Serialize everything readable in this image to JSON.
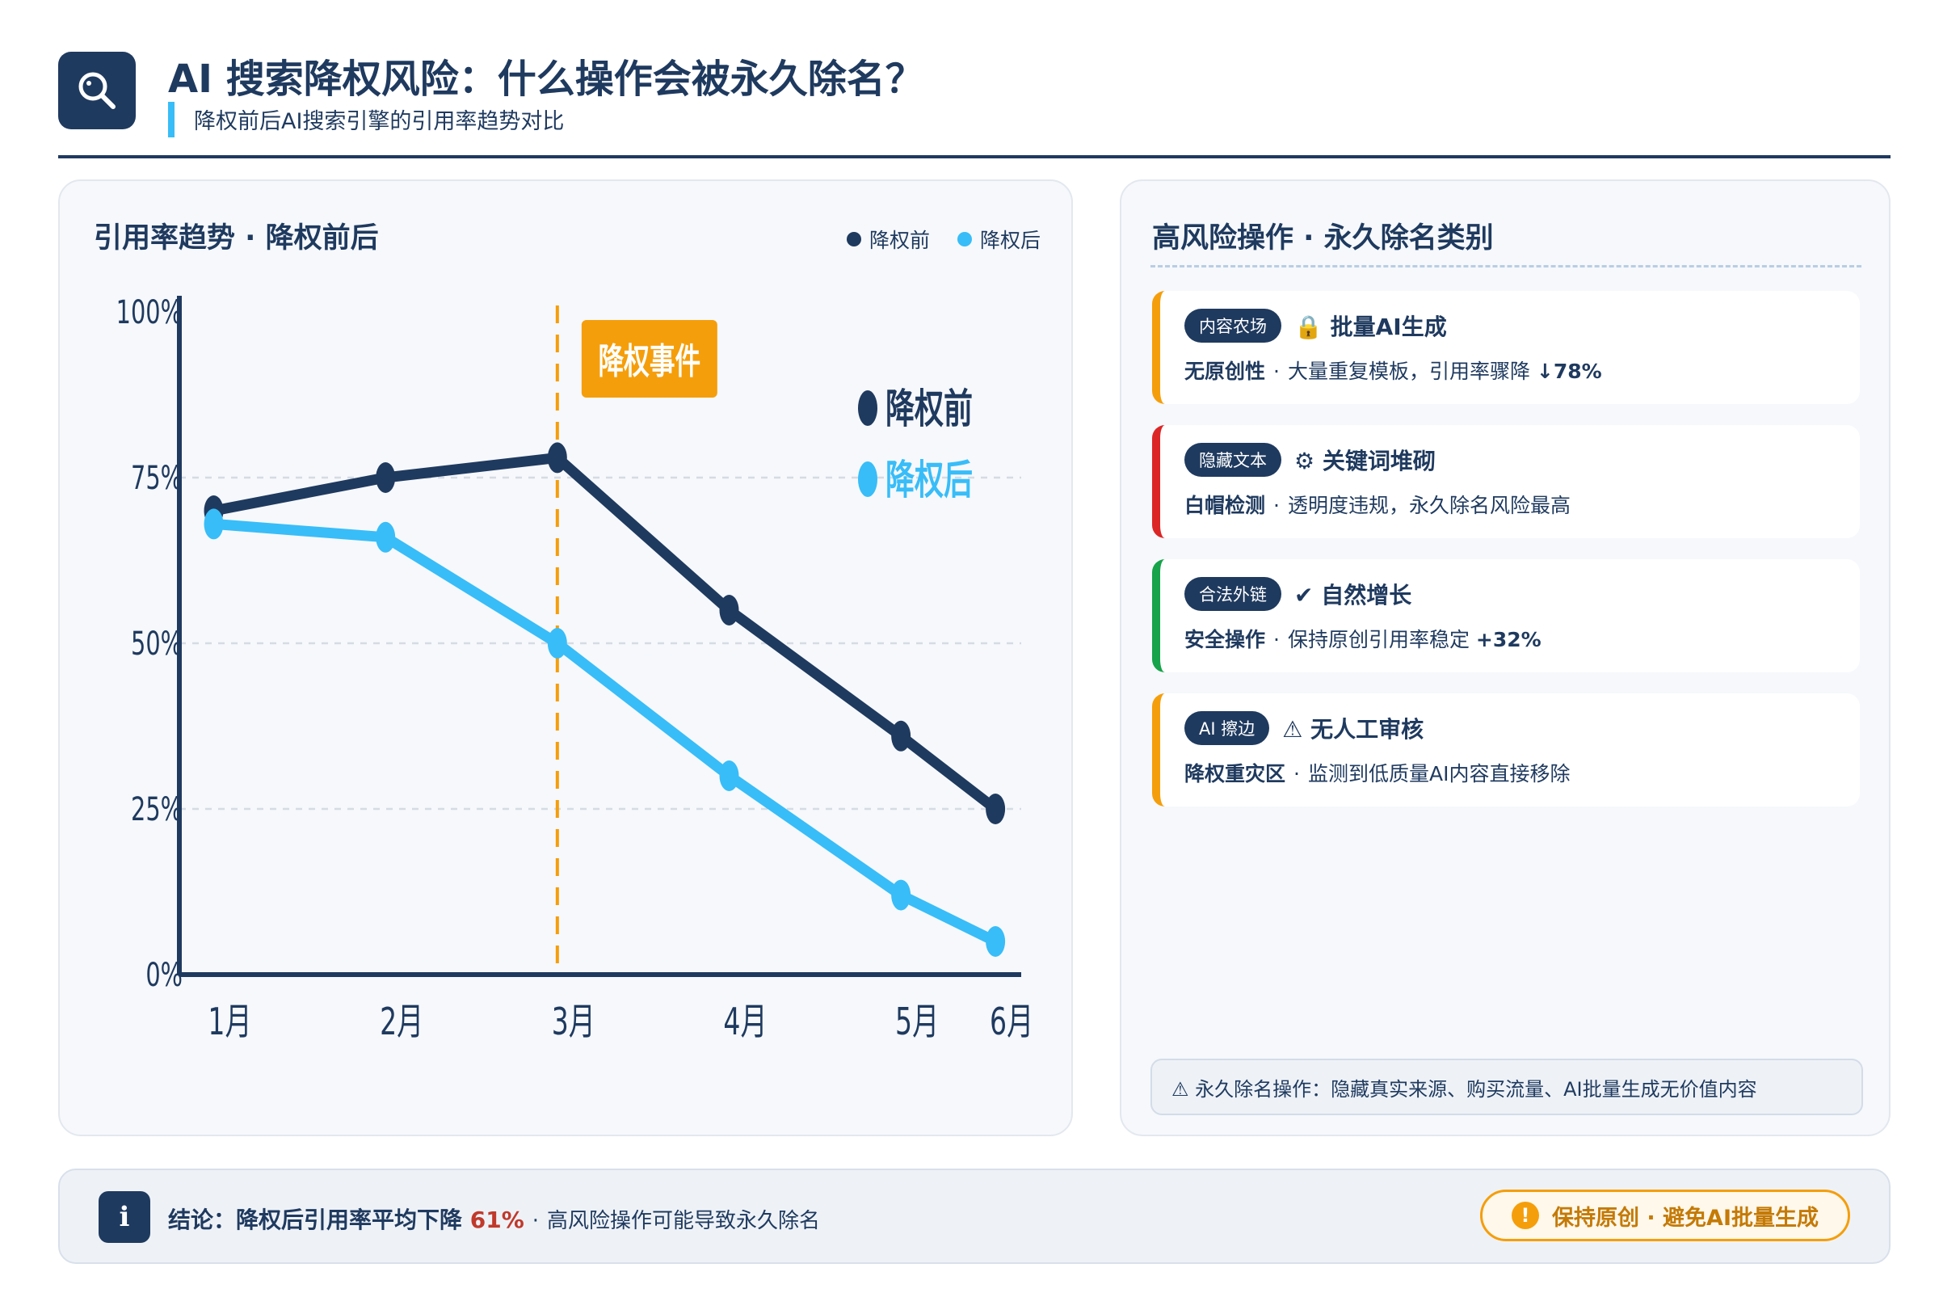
{
  "header": {
    "icon": "search-icon",
    "title": "AI 搜索降权风险：什么操作会被永久除名？",
    "subtitle": "降权前后AI搜索引擎的引用率趋势对比"
  },
  "chart_panel": {
    "title": "引用率趋势 · 降权前后",
    "legend": [
      {
        "name": "降权前",
        "color": "#1f3a5f"
      },
      {
        "name": "降权后",
        "color": "#38bdf8"
      }
    ]
  },
  "chart_data": {
    "type": "line",
    "categories": [
      "1月",
      "2月",
      "3月",
      "4月",
      "5月",
      "6月"
    ],
    "x": [
      1.0,
      2.0,
      3.0,
      4.0,
      5.0,
      5.55
    ],
    "series": [
      {
        "name": "降权前",
        "color": "#1f3a5f",
        "values": [
          70,
          75,
          78,
          55,
          36,
          25
        ]
      },
      {
        "name": "降权后",
        "color": "#38bdf8",
        "values": [
          68,
          66,
          50,
          30,
          12,
          5
        ]
      }
    ],
    "ylim": [
      0,
      100
    ],
    "yticks": [
      "0%",
      "25%",
      "50%",
      "75%",
      "100%"
    ],
    "grid": true,
    "event": {
      "label": "降权事件",
      "x": 3.0,
      "color": "#f59e0b"
    },
    "legend_placement": "top-right"
  },
  "risk_panel": {
    "title": "高风险操作 · 永久除名类别",
    "cards": [
      {
        "tag": "内容农场",
        "icon": "lock-icon",
        "icon_glyph": "🔒",
        "headline": "批量AI生成",
        "label": "无原创性",
        "detail": "大量重复模板，引用率骤降 ",
        "metric": "↓78%",
        "accent": "#f59e0b"
      },
      {
        "tag": "隐藏文本",
        "icon": "gear-icon",
        "icon_glyph": "⚙",
        "headline": "关键词堆砌",
        "label": "白帽检测",
        "detail": "透明度违规，永久除名风险最高",
        "metric": "",
        "accent": "#dc2626"
      },
      {
        "tag": "合法外链",
        "icon": "check-icon",
        "icon_glyph": "✔",
        "headline": "自然增长",
        "label": "安全操作",
        "detail": "保持原创引用率稳定 ",
        "metric": "+32%",
        "accent": "#16a34a"
      },
      {
        "tag": "AI 擦边",
        "icon": "warning-icon",
        "icon_glyph": "⚠",
        "headline": "无人工审核",
        "label": "降权重灾区",
        "detail": "监测到低质量AI内容直接移除",
        "metric": "",
        "accent": "#f59e0b"
      }
    ],
    "warning": "⚠ 永久除名操作：隐藏真实来源、购买流量、AI批量生成无价值内容"
  },
  "footer": {
    "icon": "info-icon",
    "icon_glyph": "i",
    "lead": "结论：降权后引用率平均下降 ",
    "value": "61%",
    "sep": "·",
    "rest": "高风险操作可能导致永久除名",
    "badge_glyph": "!",
    "badge": "保持原创 · 避免AI批量生成"
  }
}
